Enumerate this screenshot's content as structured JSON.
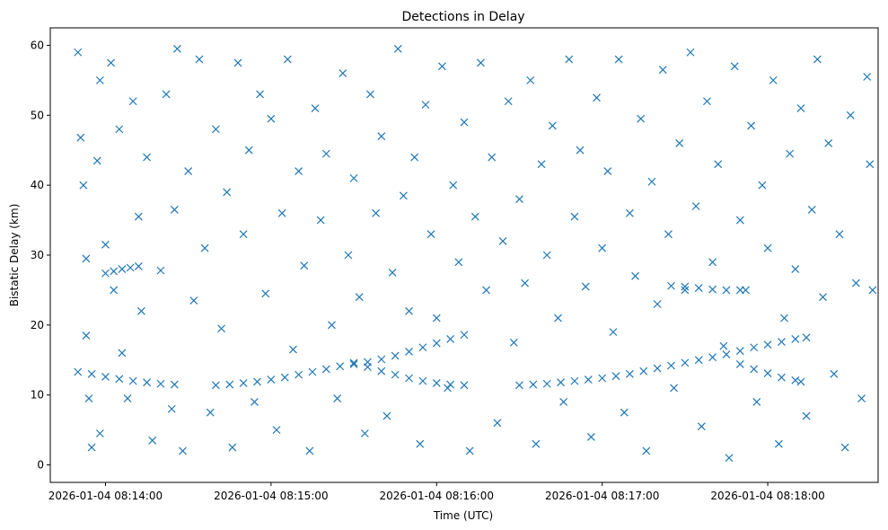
{
  "chart_data": {
    "type": "scatter",
    "title": "Detections in Delay",
    "xlabel": "Time (UTC)",
    "ylabel": "Bistatic Delay (km)",
    "x_ticks": [
      "2026-01-04 08:14:00",
      "2026-01-04 08:15:00",
      "2026-01-04 08:16:00",
      "2026-01-04 08:17:00",
      "2026-01-04 08:18:00"
    ],
    "y_ticks": [
      0,
      10,
      20,
      30,
      40,
      50,
      60
    ],
    "xlim": [
      "2026-01-04 08:13:40",
      "2026-01-04 08:18:40"
    ],
    "ylim": [
      -2.5,
      62.5
    ],
    "marker": "x",
    "color": "#1f77b4",
    "grid": false,
    "series": [
      {
        "values_description": "scattered detections",
        "points": [
          [
            "2026-01-04 08:13:50",
            59
          ],
          [
            "2026-01-04 08:13:51",
            46.8
          ],
          [
            "2026-01-04 08:13:52",
            40
          ],
          [
            "2026-01-04 08:13:53",
            29.5
          ],
          [
            "2026-01-04 08:13:53",
            18.5
          ],
          [
            "2026-01-04 08:13:54",
            9.5
          ],
          [
            "2026-01-04 08:13:55",
            2.5
          ],
          [
            "2026-01-04 08:13:57",
            43.5
          ],
          [
            "2026-01-04 08:13:58",
            55
          ],
          [
            "2026-01-04 08:13:58",
            4.5
          ],
          [
            "2026-01-04 08:14:00",
            31.5
          ],
          [
            "2026-01-04 08:14:02",
            57.5
          ],
          [
            "2026-01-04 08:14:03",
            25
          ],
          [
            "2026-01-04 08:14:05",
            48
          ],
          [
            "2026-01-04 08:14:06",
            16
          ],
          [
            "2026-01-04 08:14:08",
            9.5
          ],
          [
            "2026-01-04 08:14:10",
            52
          ],
          [
            "2026-01-04 08:14:12",
            35.5
          ],
          [
            "2026-01-04 08:14:13",
            22
          ],
          [
            "2026-01-04 08:14:15",
            44
          ],
          [
            "2026-01-04 08:14:17",
            3.5
          ],
          [
            "2026-01-04 08:14:20",
            27.8
          ],
          [
            "2026-01-04 08:14:22",
            53
          ],
          [
            "2026-01-04 08:14:24",
            8
          ],
          [
            "2026-01-04 08:14:25",
            36.5
          ],
          [
            "2026-01-04 08:14:26",
            59.5
          ],
          [
            "2026-01-04 08:14:28",
            2
          ],
          [
            "2026-01-04 08:14:30",
            42
          ],
          [
            "2026-01-04 08:14:32",
            23.5
          ],
          [
            "2026-01-04 08:14:34",
            58
          ],
          [
            "2026-01-04 08:14:36",
            31
          ],
          [
            "2026-01-04 08:14:38",
            7.5
          ],
          [
            "2026-01-04 08:14:40",
            48
          ],
          [
            "2026-01-04 08:14:42",
            19.5
          ],
          [
            "2026-01-04 08:14:44",
            39
          ],
          [
            "2026-01-04 08:14:46",
            2.5
          ],
          [
            "2026-01-04 08:14:48",
            57.5
          ],
          [
            "2026-01-04 08:14:50",
            33
          ],
          [
            "2026-01-04 08:14:52",
            45
          ],
          [
            "2026-01-04 08:14:54",
            9
          ],
          [
            "2026-01-04 08:14:56",
            53
          ],
          [
            "2026-01-04 08:14:58",
            24.5
          ],
          [
            "2026-01-04 08:15:00",
            49.5
          ],
          [
            "2026-01-04 08:15:02",
            5
          ],
          [
            "2026-01-04 08:15:04",
            36
          ],
          [
            "2026-01-04 08:15:06",
            58
          ],
          [
            "2026-01-04 08:15:08",
            16.5
          ],
          [
            "2026-01-04 08:15:10",
            42
          ],
          [
            "2026-01-04 08:15:12",
            28.5
          ],
          [
            "2026-01-04 08:15:14",
            2
          ],
          [
            "2026-01-04 08:15:16",
            51
          ],
          [
            "2026-01-04 08:15:18",
            35
          ],
          [
            "2026-01-04 08:15:20",
            44.5
          ],
          [
            "2026-01-04 08:15:22",
            20
          ],
          [
            "2026-01-04 08:15:24",
            9.5
          ],
          [
            "2026-01-04 08:15:26",
            56
          ],
          [
            "2026-01-04 08:15:28",
            30
          ],
          [
            "2026-01-04 08:15:30",
            41
          ],
          [
            "2026-01-04 08:15:32",
            24
          ],
          [
            "2026-01-04 08:15:34",
            4.5
          ],
          [
            "2026-01-04 08:15:36",
            53
          ],
          [
            "2026-01-04 08:15:38",
            36
          ],
          [
            "2026-01-04 08:15:40",
            47
          ],
          [
            "2026-01-04 08:15:42",
            7
          ],
          [
            "2026-01-04 08:15:44",
            27.5
          ],
          [
            "2026-01-04 08:15:46",
            59.5
          ],
          [
            "2026-01-04 08:15:48",
            38.5
          ],
          [
            "2026-01-04 08:15:50",
            22
          ],
          [
            "2026-01-04 08:15:52",
            44
          ],
          [
            "2026-01-04 08:15:54",
            3
          ],
          [
            "2026-01-04 08:15:56",
            51.5
          ],
          [
            "2026-01-04 08:15:58",
            33
          ],
          [
            "2026-01-04 08:16:00",
            21
          ],
          [
            "2026-01-04 08:16:02",
            57
          ],
          [
            "2026-01-04 08:16:04",
            11
          ],
          [
            "2026-01-04 08:16:06",
            40
          ],
          [
            "2026-01-04 08:16:08",
            29
          ],
          [
            "2026-01-04 08:16:10",
            49
          ],
          [
            "2026-01-04 08:16:12",
            2
          ],
          [
            "2026-01-04 08:16:14",
            35.5
          ],
          [
            "2026-01-04 08:16:16",
            57.5
          ],
          [
            "2026-01-04 08:16:18",
            25
          ],
          [
            "2026-01-04 08:16:20",
            44
          ],
          [
            "2026-01-04 08:16:22",
            6
          ],
          [
            "2026-01-04 08:16:24",
            32
          ],
          [
            "2026-01-04 08:16:26",
            52
          ],
          [
            "2026-01-04 08:16:28",
            17.5
          ],
          [
            "2026-01-04 08:16:30",
            38
          ],
          [
            "2026-01-04 08:16:32",
            26
          ],
          [
            "2026-01-04 08:16:34",
            55
          ],
          [
            "2026-01-04 08:16:36",
            3
          ],
          [
            "2026-01-04 08:16:38",
            43
          ],
          [
            "2026-01-04 08:16:40",
            30
          ],
          [
            "2026-01-04 08:16:42",
            48.5
          ],
          [
            "2026-01-04 08:16:44",
            21
          ],
          [
            "2026-01-04 08:16:46",
            9
          ],
          [
            "2026-01-04 08:16:48",
            58
          ],
          [
            "2026-01-04 08:16:50",
            35.5
          ],
          [
            "2026-01-04 08:16:52",
            45
          ],
          [
            "2026-01-04 08:16:54",
            25.5
          ],
          [
            "2026-01-04 08:16:56",
            4
          ],
          [
            "2026-01-04 08:16:58",
            52.5
          ],
          [
            "2026-01-04 08:17:00",
            31
          ],
          [
            "2026-01-04 08:17:02",
            42
          ],
          [
            "2026-01-04 08:17:04",
            19
          ],
          [
            "2026-01-04 08:17:06",
            58
          ],
          [
            "2026-01-04 08:17:08",
            7.5
          ],
          [
            "2026-01-04 08:17:10",
            36
          ],
          [
            "2026-01-04 08:17:12",
            27
          ],
          [
            "2026-01-04 08:17:14",
            49.5
          ],
          [
            "2026-01-04 08:17:16",
            2
          ],
          [
            "2026-01-04 08:17:18",
            40.5
          ],
          [
            "2026-01-04 08:17:20",
            23
          ],
          [
            "2026-01-04 08:17:22",
            56.5
          ],
          [
            "2026-01-04 08:17:24",
            33
          ],
          [
            "2026-01-04 08:17:26",
            11
          ],
          [
            "2026-01-04 08:17:28",
            46
          ],
          [
            "2026-01-04 08:17:30",
            25
          ],
          [
            "2026-01-04 08:17:32",
            59
          ],
          [
            "2026-01-04 08:17:34",
            37
          ],
          [
            "2026-01-04 08:17:36",
            5.5
          ],
          [
            "2026-01-04 08:17:38",
            52
          ],
          [
            "2026-01-04 08:17:40",
            29
          ],
          [
            "2026-01-04 08:17:42",
            43
          ],
          [
            "2026-01-04 08:17:44",
            17
          ],
          [
            "2026-01-04 08:17:46",
            1
          ],
          [
            "2026-01-04 08:17:48",
            57
          ],
          [
            "2026-01-04 08:17:50",
            35
          ],
          [
            "2026-01-04 08:17:52",
            25
          ],
          [
            "2026-01-04 08:17:54",
            48.5
          ],
          [
            "2026-01-04 08:17:56",
            9
          ],
          [
            "2026-01-04 08:17:58",
            40
          ],
          [
            "2026-01-04 08:18:00",
            31
          ],
          [
            "2026-01-04 08:18:02",
            55
          ],
          [
            "2026-01-04 08:18:04",
            3
          ],
          [
            "2026-01-04 08:18:06",
            21
          ],
          [
            "2026-01-04 08:18:08",
            44.5
          ],
          [
            "2026-01-04 08:18:10",
            28
          ],
          [
            "2026-01-04 08:18:12",
            51
          ],
          [
            "2026-01-04 08:18:14",
            7
          ],
          [
            "2026-01-04 08:18:16",
            36.5
          ],
          [
            "2026-01-04 08:18:18",
            58
          ],
          [
            "2026-01-04 08:18:20",
            24
          ],
          [
            "2026-01-04 08:18:22",
            46
          ],
          [
            "2026-01-04 08:18:24",
            13
          ],
          [
            "2026-01-04 08:18:26",
            33
          ],
          [
            "2026-01-04 08:18:28",
            2.5
          ],
          [
            "2026-01-04 08:18:30",
            50
          ],
          [
            "2026-01-04 08:18:32",
            26
          ],
          [
            "2026-01-04 08:18:34",
            9.5
          ],
          [
            "2026-01-04 08:18:36",
            55.5
          ],
          [
            "2026-01-04 08:18:37",
            43
          ],
          [
            "2026-01-04 08:18:38",
            25
          ]
        ]
      },
      {
        "values_description": "track 1 (falling then rising)",
        "points": [
          [
            "2026-01-04 08:13:50",
            13.3
          ],
          [
            "2026-01-04 08:13:55",
            13.0
          ],
          [
            "2026-01-04 08:14:00",
            12.6
          ],
          [
            "2026-01-04 08:14:05",
            12.3
          ],
          [
            "2026-01-04 08:14:10",
            12.0
          ],
          [
            "2026-01-04 08:14:15",
            11.8
          ],
          [
            "2026-01-04 08:14:20",
            11.6
          ],
          [
            "2026-01-04 08:14:25",
            11.5
          ],
          [
            "2026-01-04 08:14:40",
            11.4
          ],
          [
            "2026-01-04 08:14:45",
            11.5
          ],
          [
            "2026-01-04 08:14:50",
            11.7
          ],
          [
            "2026-01-04 08:14:55",
            11.9
          ],
          [
            "2026-01-04 08:15:00",
            12.2
          ],
          [
            "2026-01-04 08:15:05",
            12.5
          ],
          [
            "2026-01-04 08:15:10",
            12.9
          ],
          [
            "2026-01-04 08:15:15",
            13.3
          ],
          [
            "2026-01-04 08:15:20",
            13.7
          ],
          [
            "2026-01-04 08:15:25",
            14.1
          ],
          [
            "2026-01-04 08:15:30",
            14.4
          ],
          [
            "2026-01-04 08:15:35",
            14.7
          ],
          [
            "2026-01-04 08:15:40",
            15.1
          ],
          [
            "2026-01-04 08:15:45",
            15.6
          ],
          [
            "2026-01-04 08:15:50",
            16.2
          ],
          [
            "2026-01-04 08:15:55",
            16.8
          ],
          [
            "2026-01-04 08:16:00",
            17.4
          ],
          [
            "2026-01-04 08:16:05",
            18.0
          ],
          [
            "2026-01-04 08:16:10",
            18.6
          ]
        ]
      },
      {
        "values_description": "track 2 (falling)",
        "points": [
          [
            "2026-01-04 08:15:30",
            14.6
          ],
          [
            "2026-01-04 08:15:35",
            14.0
          ],
          [
            "2026-01-04 08:15:40",
            13.4
          ],
          [
            "2026-01-04 08:15:45",
            12.9
          ],
          [
            "2026-01-04 08:15:50",
            12.4
          ],
          [
            "2026-01-04 08:15:55",
            12.0
          ],
          [
            "2026-01-04 08:16:00",
            11.7
          ],
          [
            "2026-01-04 08:16:05",
            11.5
          ],
          [
            "2026-01-04 08:16:10",
            11.4
          ]
        ]
      },
      {
        "values_description": "track 3 (rising)",
        "points": [
          [
            "2026-01-04 08:16:30",
            11.4
          ],
          [
            "2026-01-04 08:16:35",
            11.5
          ],
          [
            "2026-01-04 08:16:40",
            11.6
          ],
          [
            "2026-01-04 08:16:45",
            11.8
          ],
          [
            "2026-01-04 08:16:50",
            12.0
          ],
          [
            "2026-01-04 08:16:55",
            12.2
          ],
          [
            "2026-01-04 08:17:00",
            12.4
          ],
          [
            "2026-01-04 08:17:05",
            12.7
          ],
          [
            "2026-01-04 08:17:10",
            13.0
          ],
          [
            "2026-01-04 08:17:15",
            13.4
          ],
          [
            "2026-01-04 08:17:20",
            13.8
          ],
          [
            "2026-01-04 08:17:25",
            14.2
          ],
          [
            "2026-01-04 08:17:30",
            14.6
          ],
          [
            "2026-01-04 08:17:35",
            15.0
          ],
          [
            "2026-01-04 08:17:40",
            15.4
          ],
          [
            "2026-01-04 08:17:45",
            15.8
          ],
          [
            "2026-01-04 08:17:50",
            16.3
          ],
          [
            "2026-01-04 08:17:55",
            16.8
          ],
          [
            "2026-01-04 08:18:00",
            17.2
          ],
          [
            "2026-01-04 08:18:05",
            17.6
          ],
          [
            "2026-01-04 08:18:10",
            18.0
          ],
          [
            "2026-01-04 08:18:14",
            18.2
          ]
        ]
      },
      {
        "values_description": "track 4 (falling)",
        "points": [
          [
            "2026-01-04 08:17:50",
            14.4
          ],
          [
            "2026-01-04 08:17:55",
            13.7
          ],
          [
            "2026-01-04 08:18:00",
            13.1
          ],
          [
            "2026-01-04 08:18:05",
            12.5
          ],
          [
            "2026-01-04 08:18:10",
            12.1
          ],
          [
            "2026-01-04 08:18:12",
            11.9
          ]
        ]
      },
      {
        "values_description": "cluster near 25 km",
        "points": [
          [
            "2026-01-04 08:17:25",
            25.6
          ],
          [
            "2026-01-04 08:17:30",
            25.5
          ],
          [
            "2026-01-04 08:17:35",
            25.3
          ],
          [
            "2026-01-04 08:17:40",
            25.1
          ],
          [
            "2026-01-04 08:17:45",
            25.0
          ],
          [
            "2026-01-04 08:17:50",
            25.0
          ]
        ]
      },
      {
        "values_description": "cluster near 28 km",
        "points": [
          [
            "2026-01-04 08:14:00",
            27.4
          ],
          [
            "2026-01-04 08:14:03",
            27.7
          ],
          [
            "2026-01-04 08:14:06",
            28.0
          ],
          [
            "2026-01-04 08:14:09",
            28.2
          ],
          [
            "2026-01-04 08:14:12",
            28.4
          ]
        ]
      }
    ]
  }
}
